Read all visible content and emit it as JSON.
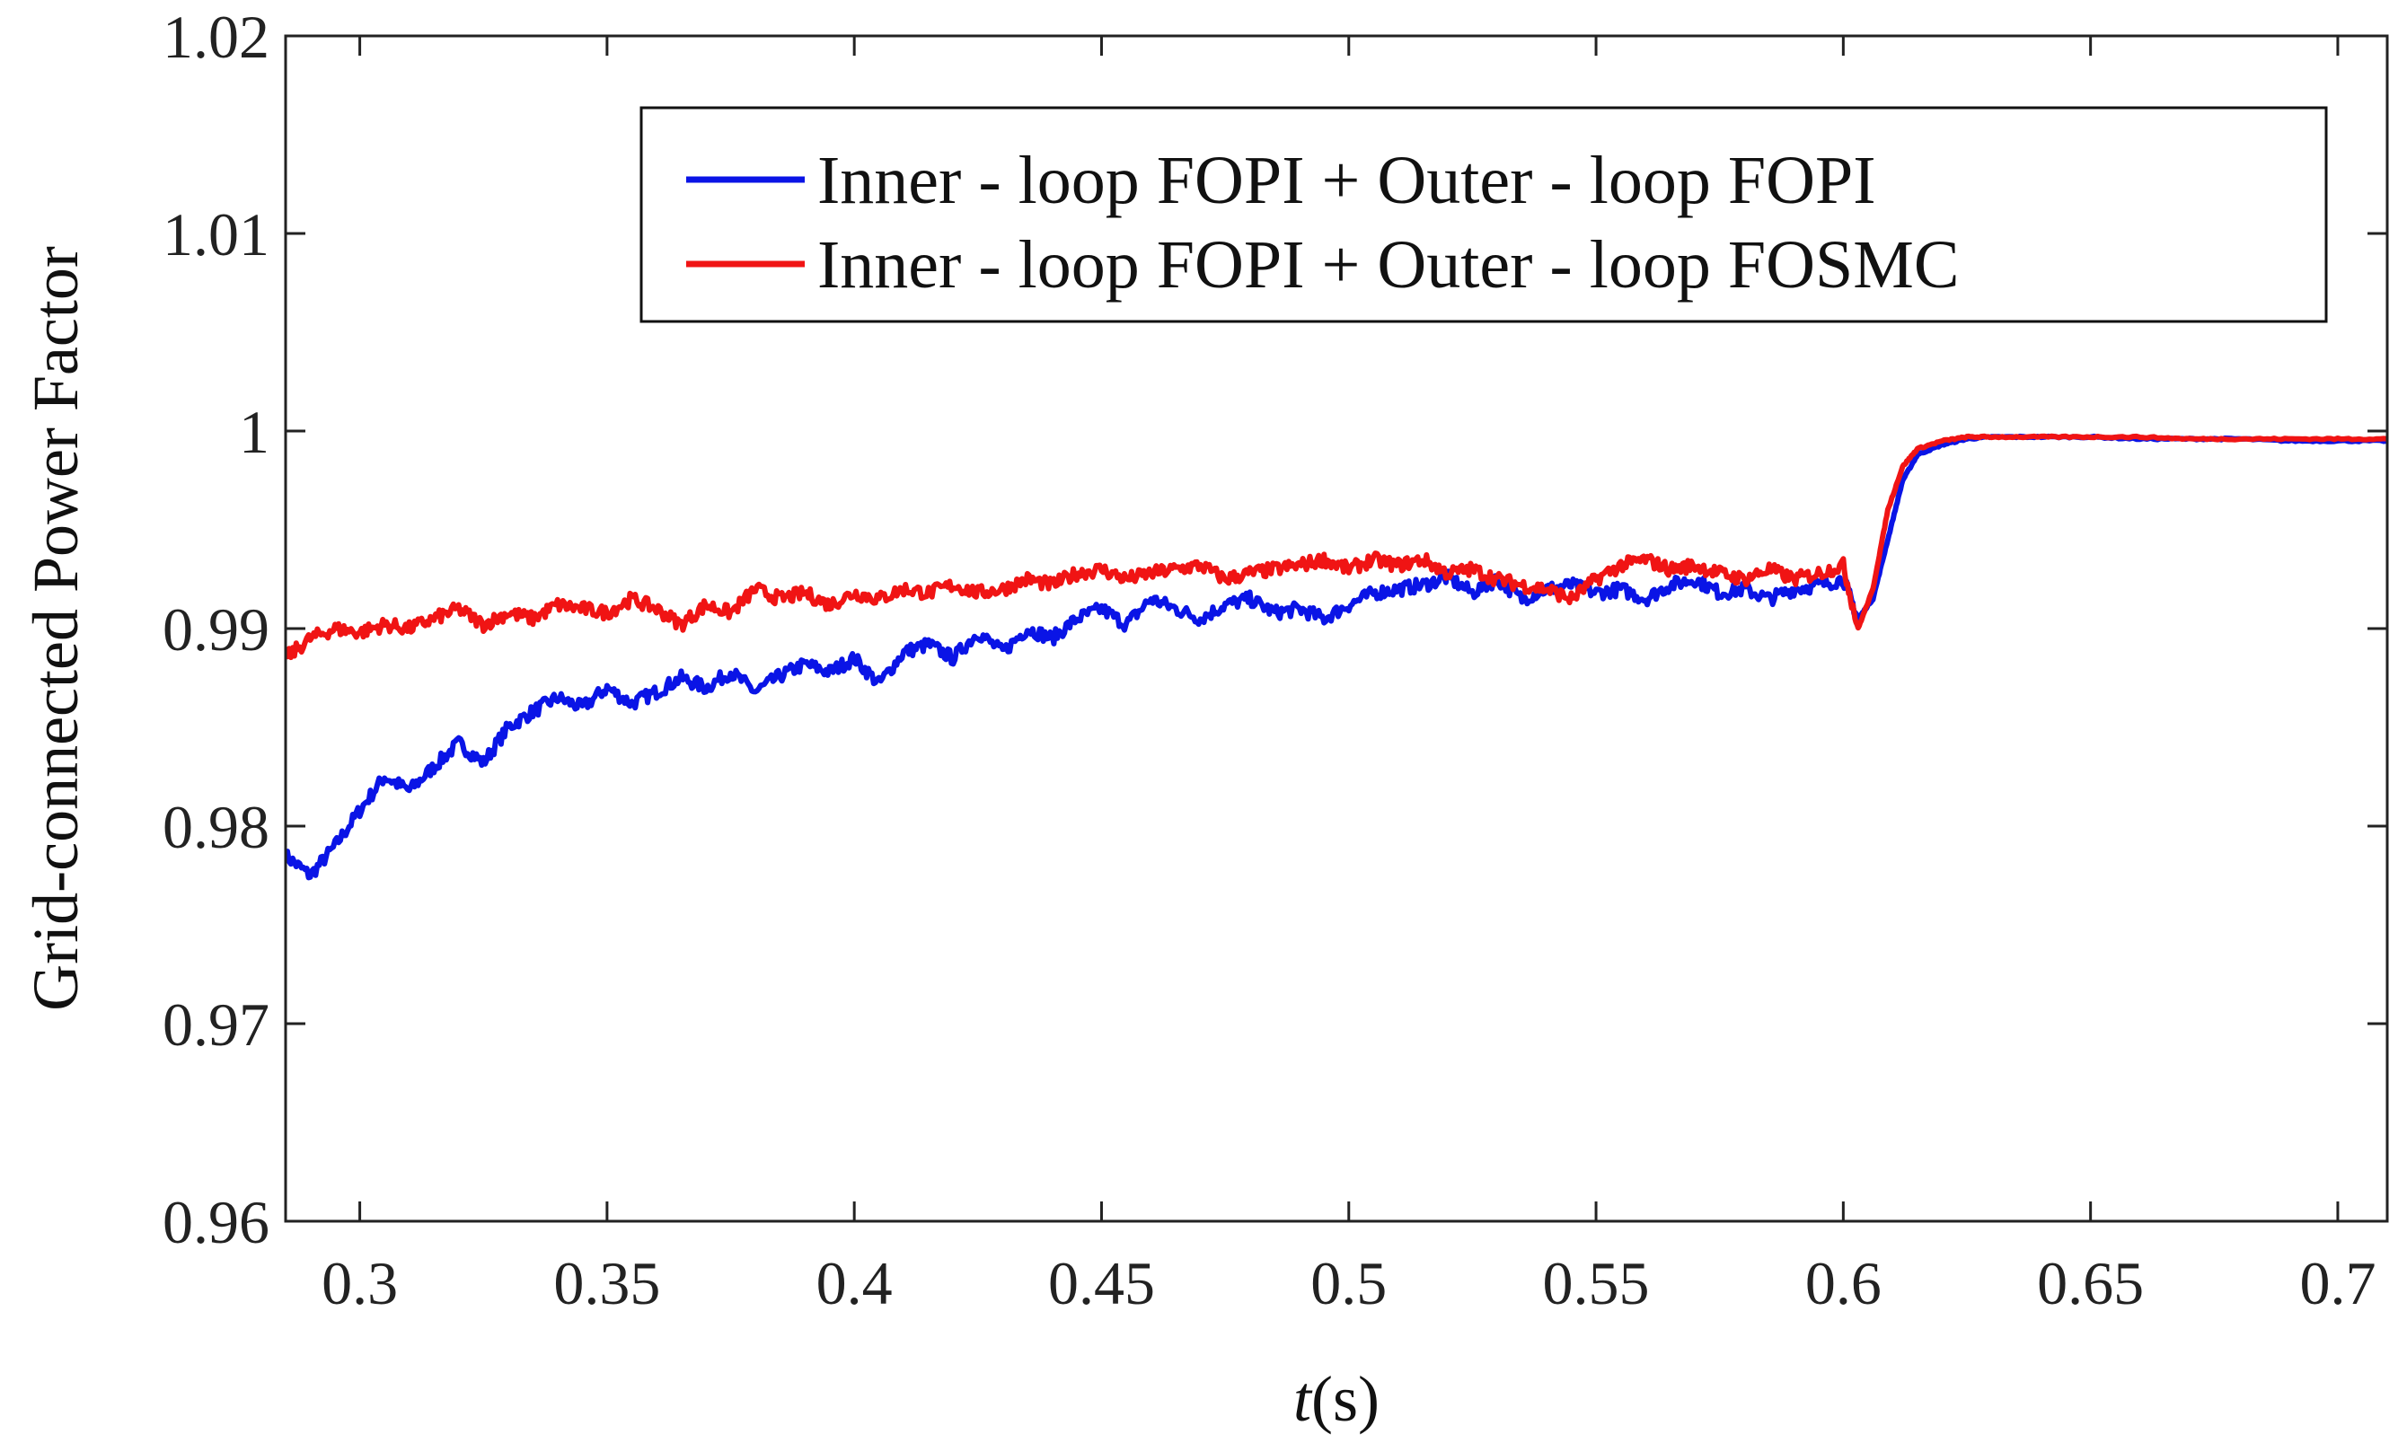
{
  "chart_data": {
    "type": "line",
    "title": "",
    "xlabel_italic": "t",
    "xlabel_unit": "(s)",
    "ylabel": "Grid-connected Power Factor",
    "xlim": [
      0.285,
      0.71
    ],
    "ylim": [
      0.96,
      1.02
    ],
    "xticks": [
      0.3,
      0.35,
      0.4,
      0.45,
      0.5,
      0.55,
      0.6,
      0.65,
      0.7
    ],
    "xtick_labels": [
      "0.3",
      "0.35",
      "0.4",
      "0.45",
      "0.5",
      "0.55",
      "0.6",
      "0.65",
      "0.7"
    ],
    "yticks": [
      0.96,
      0.97,
      0.98,
      0.99,
      1.0,
      1.01,
      1.02
    ],
    "ytick_labels": [
      "0.96",
      "0.97",
      "0.98",
      "0.99",
      "1",
      "1.01",
      "1.02"
    ],
    "grid": false,
    "legend_position": "top-right",
    "series": [
      {
        "name": "Inner - loop FOPI + Outer - loop FOPI",
        "color": "#0a14e6",
        "x": [
          0.285,
          0.29,
          0.295,
          0.3,
          0.305,
          0.31,
          0.315,
          0.32,
          0.325,
          0.33,
          0.335,
          0.34,
          0.345,
          0.35,
          0.355,
          0.36,
          0.365,
          0.37,
          0.375,
          0.38,
          0.385,
          0.39,
          0.395,
          0.4,
          0.405,
          0.41,
          0.415,
          0.42,
          0.425,
          0.43,
          0.435,
          0.44,
          0.445,
          0.45,
          0.455,
          0.46,
          0.465,
          0.47,
          0.475,
          0.48,
          0.485,
          0.49,
          0.495,
          0.5,
          0.505,
          0.51,
          0.515,
          0.52,
          0.525,
          0.53,
          0.535,
          0.54,
          0.545,
          0.55,
          0.555,
          0.56,
          0.565,
          0.57,
          0.575,
          0.58,
          0.585,
          0.59,
          0.595,
          0.6,
          0.603,
          0.606,
          0.609,
          0.612,
          0.615,
          0.62,
          0.625,
          0.63,
          0.64,
          0.65,
          0.66,
          0.67,
          0.68,
          0.69,
          0.7,
          0.71
        ],
        "values": [
          0.9785,
          0.9775,
          0.979,
          0.9808,
          0.9825,
          0.9818,
          0.983,
          0.9842,
          0.9832,
          0.985,
          0.9858,
          0.9865,
          0.986,
          0.987,
          0.9862,
          0.9868,
          0.9875,
          0.987,
          0.9878,
          0.9868,
          0.9876,
          0.9882,
          0.9878,
          0.9885,
          0.9872,
          0.9888,
          0.9892,
          0.9885,
          0.9898,
          0.9888,
          0.99,
          0.9895,
          0.9905,
          0.991,
          0.9902,
          0.9915,
          0.991,
          0.9905,
          0.9912,
          0.9915,
          0.9908,
          0.991,
          0.9905,
          0.9912,
          0.9918,
          0.992,
          0.9922,
          0.9926,
          0.9918,
          0.9925,
          0.9915,
          0.992,
          0.9922,
          0.9918,
          0.992,
          0.9915,
          0.9922,
          0.9925,
          0.9918,
          0.992,
          0.9915,
          0.992,
          0.9922,
          0.9925,
          0.9905,
          0.9915,
          0.9945,
          0.9975,
          0.9988,
          0.9993,
          0.9996,
          0.9997,
          0.9997,
          0.9997,
          0.9996,
          0.9996,
          0.9996,
          0.9995,
          0.9995,
          0.9995
        ]
      },
      {
        "name": "Inner - loop FOPI + Outer - loop FOSMC",
        "color": "#f01414",
        "x": [
          0.285,
          0.29,
          0.295,
          0.3,
          0.305,
          0.31,
          0.315,
          0.32,
          0.325,
          0.33,
          0.335,
          0.34,
          0.345,
          0.35,
          0.355,
          0.36,
          0.365,
          0.37,
          0.375,
          0.38,
          0.385,
          0.39,
          0.395,
          0.4,
          0.405,
          0.41,
          0.415,
          0.42,
          0.425,
          0.43,
          0.435,
          0.44,
          0.445,
          0.45,
          0.455,
          0.46,
          0.465,
          0.47,
          0.475,
          0.48,
          0.485,
          0.49,
          0.495,
          0.5,
          0.505,
          0.51,
          0.515,
          0.52,
          0.525,
          0.53,
          0.535,
          0.54,
          0.545,
          0.55,
          0.555,
          0.56,
          0.565,
          0.57,
          0.575,
          0.58,
          0.585,
          0.59,
          0.595,
          0.6,
          0.603,
          0.606,
          0.609,
          0.612,
          0.615,
          0.62,
          0.625,
          0.63,
          0.64,
          0.65,
          0.66,
          0.67,
          0.68,
          0.69,
          0.7,
          0.71
        ],
        "values": [
          0.9885,
          0.9895,
          0.99,
          0.9898,
          0.9902,
          0.99,
          0.9905,
          0.991,
          0.9902,
          0.9908,
          0.9905,
          0.9912,
          0.991,
          0.9908,
          0.9915,
          0.991,
          0.9902,
          0.9912,
          0.9908,
          0.992,
          0.9915,
          0.9918,
          0.9912,
          0.9918,
          0.9915,
          0.992,
          0.9918,
          0.9922,
          0.9918,
          0.992,
          0.9925,
          0.9922,
          0.9928,
          0.993,
          0.9925,
          0.9928,
          0.993,
          0.9932,
          0.9925,
          0.9928,
          0.993,
          0.9932,
          0.9935,
          0.993,
          0.9935,
          0.9932,
          0.9935,
          0.9928,
          0.993,
          0.9925,
          0.9922,
          0.992,
          0.9915,
          0.9925,
          0.9932,
          0.9935,
          0.993,
          0.9932,
          0.9928,
          0.9925,
          0.993,
          0.9925,
          0.9928,
          0.9932,
          0.99,
          0.992,
          0.996,
          0.9982,
          0.9991,
          0.9995,
          0.9997,
          0.9997,
          0.9997,
          0.9997,
          0.9997,
          0.9996,
          0.9996,
          0.9996,
          0.9996,
          0.9996
        ]
      }
    ]
  }
}
